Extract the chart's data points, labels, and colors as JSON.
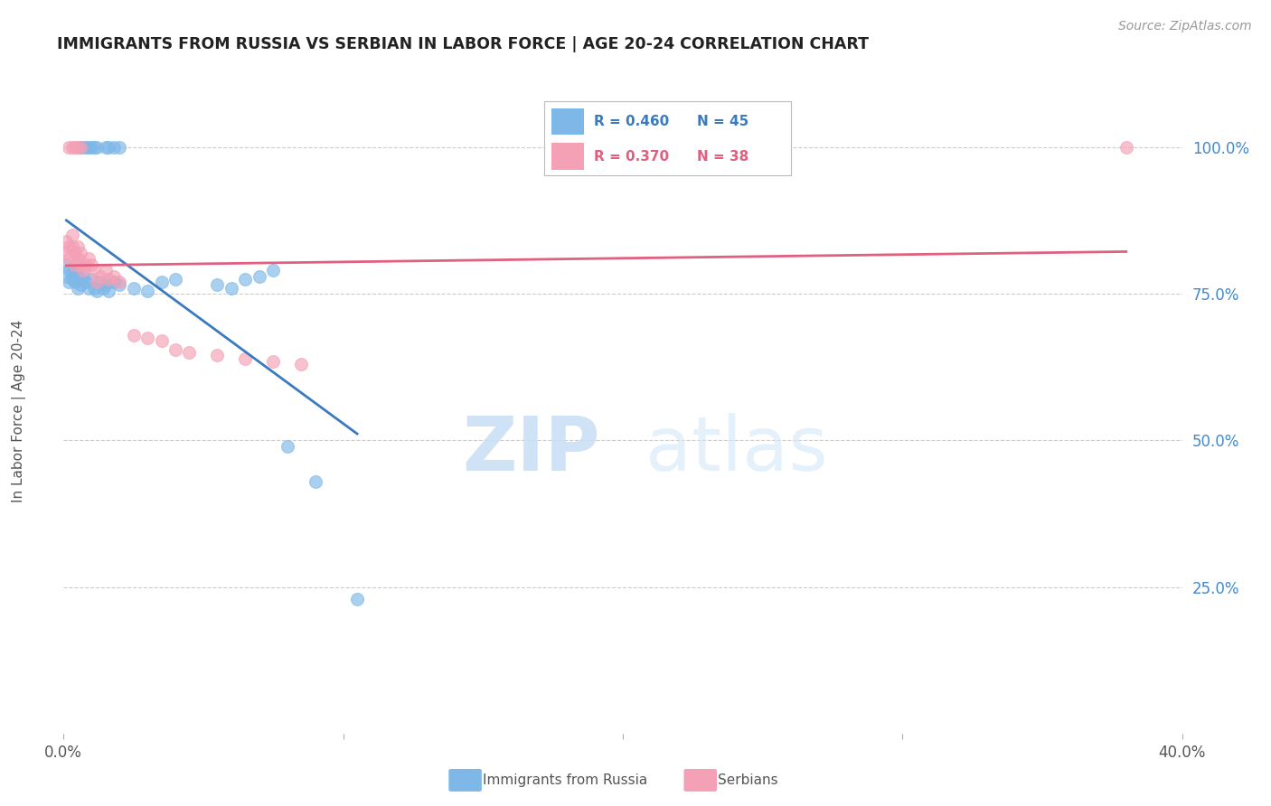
{
  "title": "IMMIGRANTS FROM RUSSIA VS SERBIAN IN LABOR FORCE | AGE 20-24 CORRELATION CHART",
  "source": "Source: ZipAtlas.com",
  "ylabel": "In Labor Force | Age 20-24",
  "xlim": [
    0.0,
    0.4
  ],
  "ylim": [
    0.0,
    1.1
  ],
  "ytick_right_labels": [
    "100.0%",
    "75.0%",
    "50.0%",
    "25.0%"
  ],
  "ytick_right_values": [
    1.0,
    0.75,
    0.5,
    0.25
  ],
  "watermark_zip": "ZIP",
  "watermark_atlas": "atlas",
  "blue_color": "#7db8e8",
  "pink_color": "#f4a0b5",
  "blue_line_color": "#3a7abf",
  "pink_line_color": "#e06080",
  "blue_scatter": [
    [
      0.001,
      0.78
    ],
    [
      0.001,
      0.8
    ],
    [
      0.002,
      0.79
    ],
    [
      0.002,
      0.77
    ],
    [
      0.003,
      0.785
    ],
    [
      0.003,
      0.775
    ],
    [
      0.004,
      0.79
    ],
    [
      0.004,
      0.77
    ],
    [
      0.005,
      0.78
    ],
    [
      0.005,
      0.76
    ],
    [
      0.006,
      0.775
    ],
    [
      0.006,
      0.765
    ],
    [
      0.007,
      0.78
    ],
    [
      0.008,
      0.77
    ],
    [
      0.009,
      0.76
    ],
    [
      0.01,
      0.775
    ],
    [
      0.011,
      0.76
    ],
    [
      0.012,
      0.755
    ],
    [
      0.013,
      0.77
    ],
    [
      0.014,
      0.76
    ],
    [
      0.015,
      0.765
    ],
    [
      0.016,
      0.755
    ],
    [
      0.018,
      0.77
    ],
    [
      0.02,
      0.765
    ],
    [
      0.025,
      0.76
    ],
    [
      0.03,
      0.755
    ],
    [
      0.035,
      0.77
    ],
    [
      0.04,
      0.775
    ],
    [
      0.055,
      0.765
    ],
    [
      0.06,
      0.76
    ],
    [
      0.065,
      0.775
    ],
    [
      0.07,
      0.78
    ],
    [
      0.075,
      0.79
    ],
    [
      0.006,
      1.0
    ],
    [
      0.007,
      1.0
    ],
    [
      0.008,
      1.0
    ],
    [
      0.009,
      1.0
    ],
    [
      0.01,
      1.0
    ],
    [
      0.011,
      1.0
    ],
    [
      0.012,
      1.0
    ],
    [
      0.015,
      1.0
    ],
    [
      0.016,
      1.0
    ],
    [
      0.018,
      1.0
    ],
    [
      0.02,
      1.0
    ],
    [
      0.08,
      0.49
    ],
    [
      0.09,
      0.43
    ],
    [
      0.105,
      0.23
    ]
  ],
  "pink_scatter": [
    [
      0.001,
      0.84
    ],
    [
      0.001,
      0.82
    ],
    [
      0.002,
      0.83
    ],
    [
      0.002,
      0.81
    ],
    [
      0.003,
      0.85
    ],
    [
      0.003,
      0.83
    ],
    [
      0.004,
      0.82
    ],
    [
      0.004,
      0.8
    ],
    [
      0.005,
      0.83
    ],
    [
      0.005,
      0.81
    ],
    [
      0.006,
      0.82
    ],
    [
      0.006,
      0.8
    ],
    [
      0.007,
      0.79
    ],
    [
      0.008,
      0.8
    ],
    [
      0.009,
      0.81
    ],
    [
      0.01,
      0.8
    ],
    [
      0.011,
      0.79
    ],
    [
      0.012,
      0.77
    ],
    [
      0.013,
      0.78
    ],
    [
      0.015,
      0.79
    ],
    [
      0.016,
      0.775
    ],
    [
      0.018,
      0.78
    ],
    [
      0.02,
      0.77
    ],
    [
      0.025,
      0.68
    ],
    [
      0.03,
      0.675
    ],
    [
      0.035,
      0.67
    ],
    [
      0.04,
      0.655
    ],
    [
      0.045,
      0.65
    ],
    [
      0.055,
      0.645
    ],
    [
      0.065,
      0.64
    ],
    [
      0.075,
      0.635
    ],
    [
      0.085,
      0.63
    ],
    [
      0.002,
      1.0
    ],
    [
      0.003,
      1.0
    ],
    [
      0.004,
      1.0
    ],
    [
      0.005,
      1.0
    ],
    [
      0.006,
      1.0
    ],
    [
      0.38,
      1.0
    ]
  ],
  "background_color": "#ffffff",
  "grid_color": "#cccccc"
}
